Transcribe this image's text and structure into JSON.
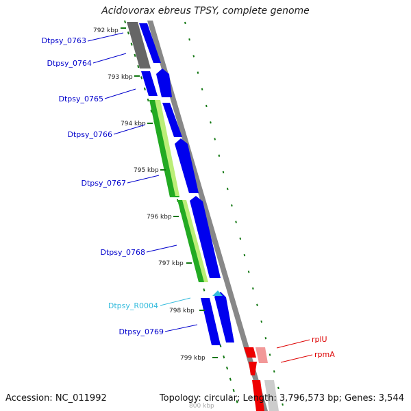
{
  "title": "Acidovorax ebreus TPSY, complete genome",
  "accession_text": "Accession: NC_011992",
  "summary_text": "Topology: circular; Length: 3,796,573 bp; Genes: 3,544",
  "colors": {
    "cds_blue": "#0000ee",
    "rna_cyan": "#33bbdd",
    "red_gene": "#ee0000",
    "pink_gene": "#f29898",
    "gray_block": "#666666",
    "green_dark": "#22aa22",
    "green_light": "#bbee77",
    "tick_green": "#117711",
    "backbone": "#888888"
  },
  "kbp_ticks": [
    "792 kbp",
    "793 kbp",
    "794 kbp",
    "795 kbp",
    "796 kbp",
    "797 kbp",
    "798 kbp",
    "799 kbp",
    "800 kbp"
  ],
  "genes_left": [
    {
      "label": "Dtpsy_0763",
      "kind": "cds"
    },
    {
      "label": "Dtpsy_0764",
      "kind": "cds"
    },
    {
      "label": "Dtpsy_0765",
      "kind": "cds"
    },
    {
      "label": "Dtpsy_0766",
      "kind": "cds"
    },
    {
      "label": "Dtpsy_0767",
      "kind": "cds"
    },
    {
      "label": "Dtpsy_0768",
      "kind": "cds"
    },
    {
      "label": "Dtpsy_R0004",
      "kind": "rna"
    },
    {
      "label": "Dtpsy_0769",
      "kind": "cds"
    }
  ],
  "genes_right": [
    {
      "label": "rplU"
    },
    {
      "label": "rpmA"
    }
  ]
}
